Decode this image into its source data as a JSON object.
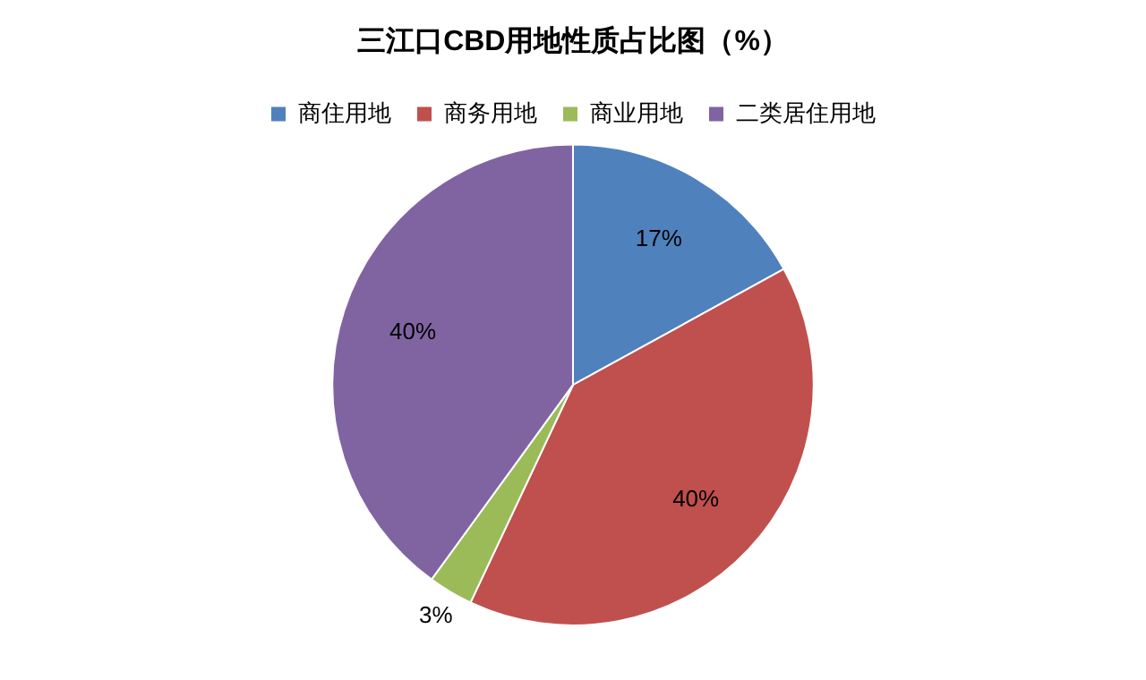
{
  "chart_data": {
    "type": "pie",
    "title": "三江口CBD用地性质占比图（%）",
    "categories": [
      "商住用地",
      "商务用地",
      "商业用地",
      "二类居住用地"
    ],
    "values": [
      17,
      40,
      3,
      40
    ],
    "colors": [
      "#4f81bd",
      "#c0504d",
      "#9bbb59",
      "#8064a2"
    ],
    "value_labels": [
      "17%",
      "40%",
      "3%",
      "40%"
    ],
    "legend": "top"
  }
}
